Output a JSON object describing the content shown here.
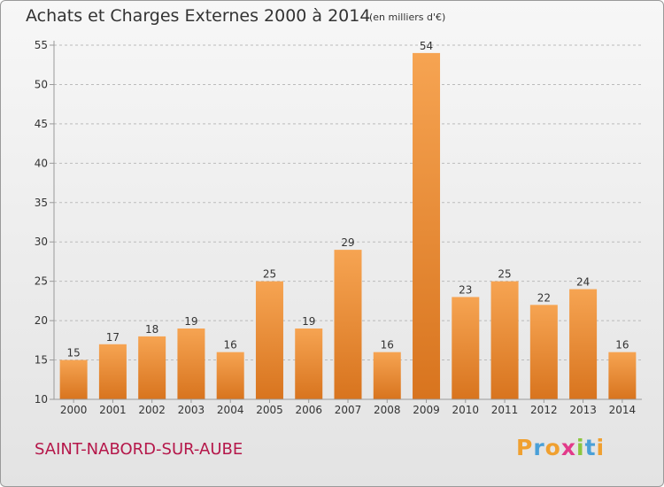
{
  "title": "Achats et Charges Externes 2000 à 2014",
  "unit": "(en milliers d'€)",
  "place": "SAINT-NABORD-SUR-AUBE",
  "logo": {
    "letters": [
      "P",
      "r",
      "o",
      "x",
      "i",
      "t",
      "i"
    ],
    "colors": [
      "#f0a030",
      "#4aa0d8",
      "#f0a030",
      "#e23a8a",
      "#8cc63f",
      "#4aa0d8",
      "#f0a030"
    ]
  },
  "colors": {
    "bar_top": "#f6a452",
    "bar_bottom": "#d8741e",
    "grid": "#bbbbbb",
    "axis": "#999999",
    "text": "#333333"
  },
  "chart_data": {
    "type": "bar",
    "categories": [
      "2000",
      "2001",
      "2002",
      "2003",
      "2004",
      "2005",
      "2006",
      "2007",
      "2008",
      "2009",
      "2010",
      "2011",
      "2012",
      "2013",
      "2014"
    ],
    "values": [
      15,
      17,
      18,
      19,
      16,
      25,
      19,
      29,
      16,
      54,
      23,
      25,
      22,
      24,
      16
    ],
    "yticks": [
      10,
      15,
      20,
      25,
      30,
      35,
      40,
      45,
      50,
      55
    ],
    "ylim": [
      10,
      55
    ],
    "grid": true,
    "data_labels": true
  }
}
